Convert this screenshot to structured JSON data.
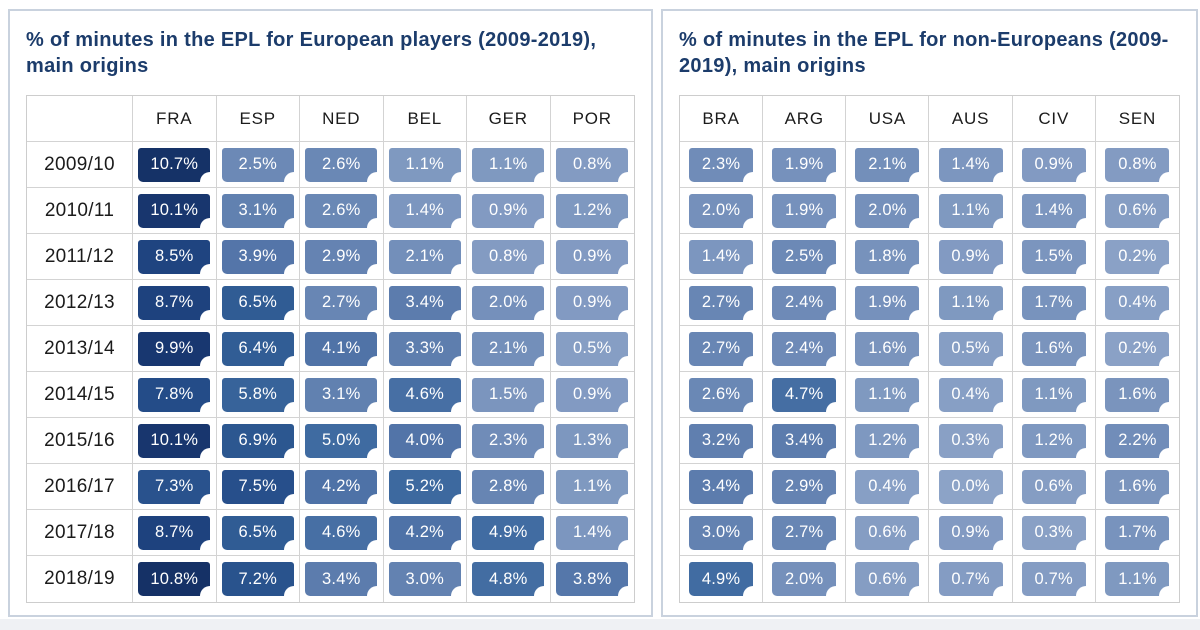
{
  "chart_data": [
    {
      "type": "heatmap",
      "title": "% of minutes in the EPL for European players (2009-2019), main origins",
      "columns": [
        "FRA",
        "ESP",
        "NED",
        "BEL",
        "GER",
        "POR"
      ],
      "row_labels": [
        "2009/10",
        "2010/11",
        "2011/12",
        "2012/13",
        "2013/14",
        "2014/15",
        "2015/16",
        "2016/17",
        "2017/18",
        "2018/19"
      ],
      "values": [
        [
          10.7,
          2.5,
          2.6,
          1.1,
          1.1,
          0.8
        ],
        [
          10.1,
          3.1,
          2.6,
          1.4,
          0.9,
          1.2
        ],
        [
          8.5,
          3.9,
          2.9,
          2.1,
          0.8,
          0.9
        ],
        [
          8.7,
          6.5,
          2.7,
          3.4,
          2.0,
          0.9
        ],
        [
          9.9,
          6.4,
          4.1,
          3.3,
          2.1,
          0.5
        ],
        [
          7.8,
          5.8,
          3.1,
          4.6,
          1.5,
          0.9
        ],
        [
          10.1,
          6.9,
          5.0,
          4.0,
          2.3,
          1.3
        ],
        [
          7.3,
          7.5,
          4.2,
          5.2,
          2.8,
          1.1
        ],
        [
          8.7,
          6.5,
          4.6,
          4.2,
          4.9,
          1.4
        ],
        [
          10.8,
          7.2,
          3.4,
          3.0,
          4.8,
          3.8
        ]
      ],
      "value_suffix": "%",
      "show_row_labels": true,
      "legend_position": "none",
      "grid": true
    },
    {
      "type": "heatmap",
      "title": "% of minutes in the EPL for non-Europeans (2009-2019), main origins",
      "columns": [
        "BRA",
        "ARG",
        "USA",
        "AUS",
        "CIV",
        "SEN"
      ],
      "row_labels": [
        "2009/10",
        "2010/11",
        "2011/12",
        "2012/13",
        "2013/14",
        "2014/15",
        "2015/16",
        "2016/17",
        "2017/18",
        "2018/19"
      ],
      "values": [
        [
          2.3,
          1.9,
          2.1,
          1.4,
          0.9,
          0.8
        ],
        [
          2.0,
          1.9,
          2.0,
          1.1,
          1.4,
          0.6
        ],
        [
          1.4,
          2.5,
          1.8,
          0.9,
          1.5,
          0.2
        ],
        [
          2.7,
          2.4,
          1.9,
          1.1,
          1.7,
          0.4
        ],
        [
          2.7,
          2.4,
          1.6,
          0.5,
          1.6,
          0.2
        ],
        [
          2.6,
          4.7,
          1.1,
          0.4,
          1.1,
          1.6
        ],
        [
          3.2,
          3.4,
          1.2,
          0.3,
          1.2,
          2.2
        ],
        [
          3.4,
          2.9,
          0.4,
          0.0,
          0.6,
          1.6
        ],
        [
          3.0,
          2.7,
          0.6,
          0.9,
          0.3,
          1.7
        ],
        [
          4.9,
          2.0,
          0.6,
          0.7,
          0.7,
          1.1
        ]
      ],
      "value_suffix": "%",
      "show_row_labels": false,
      "legend_position": "none",
      "grid": true
    }
  ],
  "color_scale": {
    "badge_text_color": "#FFFFFF",
    "title_color": "#1C3C6B",
    "panel_border_color": "#C9D2DE",
    "grid_line_color": "#D3D3D3",
    "stops": [
      {
        "value": 0,
        "color": "#8CA3C7"
      },
      {
        "value": 2,
        "color": "#7590BB"
      },
      {
        "value": 3,
        "color": "#6382B1"
      },
      {
        "value": 4,
        "color": "#5274A8"
      },
      {
        "value": 5,
        "color": "#3F6BA1"
      },
      {
        "value": 6.5,
        "color": "#305C94"
      },
      {
        "value": 8,
        "color": "#224986"
      },
      {
        "value": 9.5,
        "color": "#1A3A74"
      },
      {
        "value": 11,
        "color": "#143064"
      }
    ]
  }
}
